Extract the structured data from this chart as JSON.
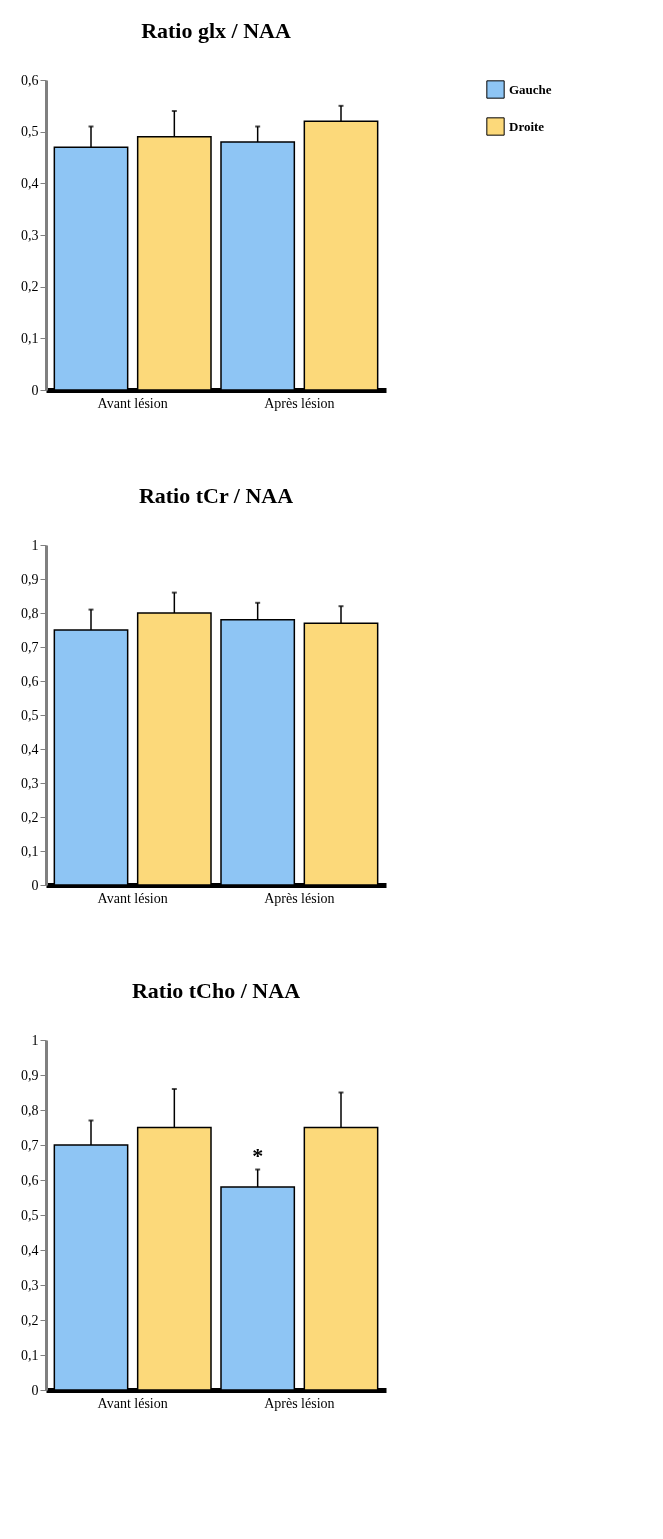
{
  "chart_data": [
    {
      "type": "bar",
      "title": "Ratio glx / NAA",
      "categories": [
        "Avant lésion",
        "Après lésion"
      ],
      "legend": "right",
      "series": [
        {
          "name": "Gauche",
          "color": "#8ec5f4",
          "values": [
            0.47,
            0.48
          ],
          "errors": [
            [
              0.47,
              0.51
            ],
            [
              0.48,
              0.51
            ]
          ]
        },
        {
          "name": "Droite",
          "color": "#fcd97a",
          "values": [
            0.49,
            0.52
          ],
          "errors": [
            [
              0.49,
              0.54
            ],
            [
              0.52,
              0.55
            ]
          ]
        }
      ],
      "ylim": [
        0,
        0.6
      ],
      "yticks": [
        0,
        {
          "value": 0.1,
          "label": "0,1"
        },
        {
          "value": 0.2,
          "label": "0,2"
        },
        {
          "value": 0.3,
          "label": "0,3"
        },
        {
          "value": 0.4,
          "label": "0,4"
        },
        {
          "value": 0.5,
          "label": "0,5"
        },
        {
          "value": 0.6,
          "label": "0,6"
        }
      ]
    },
    {
      "type": "bar",
      "title": "Ratio tCr / NAA",
      "categories": [
        "Avant lésion",
        "Après lésion"
      ],
      "series": [
        {
          "name": "Gauche",
          "color": "#8ec5f4",
          "values": [
            0.75,
            0.78
          ],
          "errors": [
            [
              0.75,
              0.81
            ],
            [
              0.78,
              0.83
            ]
          ]
        },
        {
          "name": "Droite",
          "color": "#fcd97a",
          "values": [
            0.8,
            0.77
          ],
          "errors": [
            [
              0.8,
              0.86
            ],
            [
              0.77,
              0.82
            ]
          ]
        }
      ],
      "ylim": [
        0,
        1
      ],
      "yticks": [
        0,
        {
          "value": 0.1,
          "label": "0,1"
        },
        {
          "value": 0.2,
          "label": "0,2"
        },
        {
          "value": 0.3,
          "label": "0,3"
        },
        {
          "value": 0.4,
          "label": "0,4"
        },
        {
          "value": 0.5,
          "label": "0,5"
        },
        {
          "value": 0.6,
          "label": "0,6"
        },
        {
          "value": 0.7,
          "label": "0,7"
        },
        {
          "value": 0.8,
          "label": "0,8"
        },
        {
          "value": 0.9,
          "label": "0,9"
        },
        1
      ]
    },
    {
      "type": "bar",
      "title": "Ratio tCho / NAA",
      "categories": [
        "Avant lésion",
        "Après lésion"
      ],
      "series": [
        {
          "name": "Gauche",
          "color": "#8ec5f4",
          "values": [
            0.7,
            0.58
          ],
          "errors": [
            [
              0.7,
              0.77
            ],
            [
              0.58,
              0.63
            ]
          ]
        },
        {
          "name": "Droite",
          "color": "#fcd97a",
          "values": [
            0.75,
            0.75
          ],
          "errors": [
            [
              0.75,
              0.86
            ],
            [
              0.75,
              0.85
            ]
          ]
        }
      ],
      "annotations": [
        {
          "text": "*",
          "x": "Après lésion",
          "y": 0.67
        }
      ],
      "ylim": [
        0,
        1
      ],
      "yticks": [
        0,
        {
          "value": 0.1,
          "label": "0,1"
        },
        {
          "value": 0.2,
          "label": "0,2"
        },
        {
          "value": 0.3,
          "label": "0,3"
        },
        {
          "value": 0.4,
          "label": "0,4"
        },
        {
          "value": 0.5,
          "label": "0,5"
        },
        {
          "value": 0.6,
          "label": "0,6"
        },
        {
          "value": 0.7,
          "label": "0,7"
        },
        {
          "value": 0.8,
          "label": "0,8"
        },
        {
          "value": 0.9,
          "label": "0,9"
        },
        1
      ]
    }
  ]
}
